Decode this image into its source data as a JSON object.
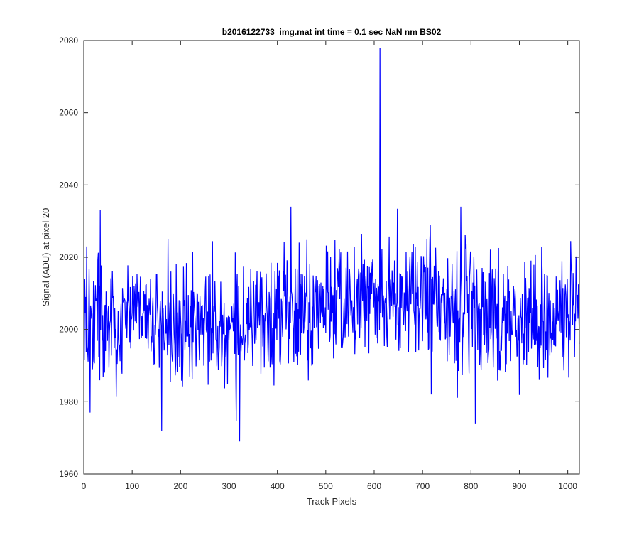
{
  "chart_data": {
    "type": "line",
    "title": "b2016122733_img.mat int time = 0.1 sec  NaN nm BS02",
    "xlabel": "Track Pixels",
    "ylabel": "Signal (ADU) at pixel 20",
    "xlim": [
      0,
      1024
    ],
    "ylim": [
      1960,
      2080
    ],
    "xticks": [
      0,
      100,
      200,
      300,
      400,
      500,
      600,
      700,
      800,
      900,
      1000
    ],
    "yticks": [
      1960,
      1980,
      2000,
      2020,
      2040,
      2060,
      2080
    ],
    "grid": false,
    "series": [
      {
        "color": "#0000ff",
        "x_range": [
          1,
          1024
        ],
        "noise_sd": 8.5,
        "baseline": [
          [
            0,
            2003
          ],
          [
            200,
            2001
          ],
          [
            300,
            1999
          ],
          [
            400,
            2005
          ],
          [
            500,
            2006
          ],
          [
            600,
            2009
          ],
          [
            700,
            2008
          ],
          [
            800,
            2005
          ],
          [
            900,
            2003
          ],
          [
            1024,
            2004
          ]
        ],
        "notable_points": [
          {
            "x": 8,
            "y": 1994
          },
          {
            "x": 13,
            "y": 1977
          },
          {
            "x": 34,
            "y": 2033
          },
          {
            "x": 161,
            "y": 1972
          },
          {
            "x": 322,
            "y": 1969
          },
          {
            "x": 428,
            "y": 2034
          },
          {
            "x": 612,
            "y": 2078
          },
          {
            "x": 718,
            "y": 1982
          },
          {
            "x": 779,
            "y": 2034
          },
          {
            "x": 809,
            "y": 1974
          },
          {
            "x": 1024,
            "y": 1996
          }
        ]
      }
    ]
  }
}
